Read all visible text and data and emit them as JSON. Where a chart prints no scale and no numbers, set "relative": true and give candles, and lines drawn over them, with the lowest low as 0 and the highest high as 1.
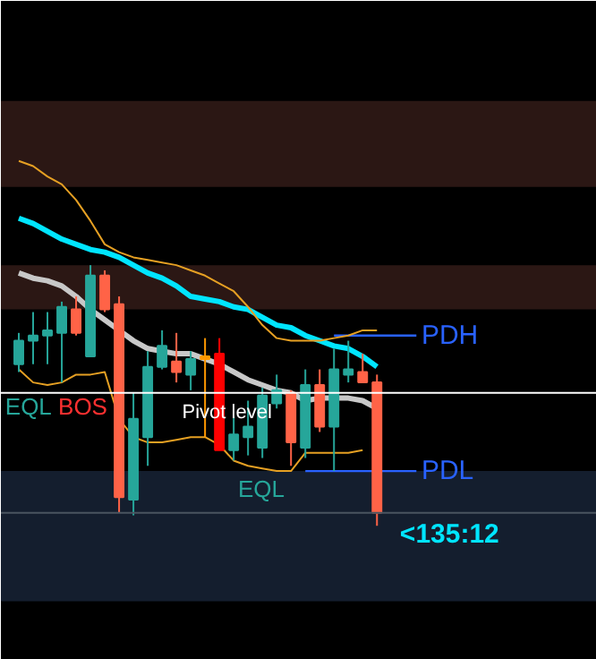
{
  "chart_data": {
    "type": "candlestick",
    "relative": true,
    "categories": [
      null,
      null,
      null,
      null,
      null,
      null,
      null,
      null,
      null,
      null,
      null,
      null,
      null,
      null,
      null,
      null,
      null,
      null,
      null,
      null,
      null,
      null,
      null,
      null,
      null,
      null
    ],
    "ohlc": [
      [
        0.62,
        0.74,
        0.59,
        0.71
      ],
      [
        0.71,
        0.82,
        0.62,
        0.73
      ],
      [
        0.73,
        0.82,
        0.62,
        0.75
      ],
      [
        0.74,
        0.86,
        0.55,
        0.84
      ],
      [
        0.83,
        0.88,
        0.73,
        0.74
      ],
      [
        0.65,
        1.0,
        0.65,
        0.96
      ],
      [
        0.96,
        0.98,
        0.82,
        0.83
      ],
      [
        0.85,
        0.88,
        0.05,
        0.11
      ],
      [
        0.1,
        0.51,
        0.04,
        0.41
      ],
      [
        0.34,
        0.67,
        0.23,
        0.61
      ],
      [
        0.61,
        0.75,
        0.6,
        0.69
      ],
      [
        0.63,
        0.74,
        0.55,
        0.59
      ],
      [
        0.58,
        0.67,
        0.52,
        0.64
      ],
      [
        0.65,
        0.72,
        0.34,
        0.64
      ],
      [
        0.66,
        0.72,
        0.29,
        0.29
      ],
      [
        0.29,
        0.42,
        0.25,
        0.35
      ],
      [
        0.34,
        0.48,
        0.27,
        0.38
      ],
      [
        0.3,
        0.53,
        0.26,
        0.5
      ],
      [
        0.47,
        0.58,
        0.45,
        0.52
      ],
      [
        0.51,
        0.52,
        0.23,
        0.32
      ],
      [
        0.3,
        0.6,
        0.26,
        0.54
      ],
      [
        0.54,
        0.6,
        0.36,
        0.38
      ],
      [
        0.38,
        0.68,
        0.21,
        0.6
      ],
      [
        0.58,
        0.71,
        0.55,
        0.6
      ],
      [
        0.59,
        0.66,
        0.55,
        0.55
      ],
      [
        0.55,
        0.58,
        0.0,
        0.05
      ]
    ],
    "colors": [
      "#26a69a",
      "#26a69a",
      "#26a69a",
      "#26a69a",
      "#ff6347",
      "#26a69a",
      "#ff6347",
      "#ff6347",
      "#26a69a",
      "#26a69a",
      "#26a69a",
      "#ff6347",
      "#26a69a",
      "#ff9800",
      "#ff0000",
      "#26a69a",
      "#26a69a",
      "#26a69a",
      "#26a69a",
      "#ff6347",
      "#26a69a",
      "#ff6347",
      "#26a69a",
      "#26a69a",
      "#ff6347",
      "#ff6347"
    ],
    "series": [
      {
        "type": "line",
        "color": "#00e5ff",
        "values": [
          1.18,
          1.16,
          1.13,
          1.1,
          1.08,
          1.06,
          1.05,
          1.03,
          1.0,
          0.97,
          0.95,
          0.92,
          0.88,
          0.87,
          0.86,
          0.84,
          0.83,
          0.8,
          0.77,
          0.76,
          0.73,
          0.71,
          0.69,
          0.68,
          0.65,
          0.61
        ]
      },
      {
        "type": "line",
        "color": "#c8c8c8",
        "values": [
          0.97,
          0.95,
          0.94,
          0.92,
          0.88,
          0.83,
          0.79,
          0.75,
          0.71,
          0.68,
          0.67,
          0.66,
          0.66,
          0.64,
          0.62,
          0.59,
          0.56,
          0.54,
          0.52,
          0.51,
          0.48,
          0.49,
          0.49,
          0.49,
          0.48,
          0.45
        ]
      },
      {
        "type": "line",
        "color": "#e6a023",
        "values": [
          1.4,
          1.38,
          1.34,
          1.31,
          1.25,
          1.17,
          1.08,
          1.05,
          1.03,
          1.02,
          1.01,
          1.0,
          0.98,
          0.96,
          0.93,
          0.9,
          0.84,
          0.77,
          0.72,
          0.71,
          0.71,
          0.71,
          0.72,
          0.73,
          0.75,
          0.75
        ]
      },
      {
        "type": "line",
        "color": "#e6a023",
        "values": [
          0.6,
          0.55,
          0.54,
          0.55,
          0.58,
          0.58,
          0.59,
          0.41,
          0.34,
          0.32,
          0.32,
          0.33,
          0.34,
          0.34,
          0.31,
          0.25,
          0.23,
          0.22,
          0.21,
          0.21,
          0.28,
          0.28,
          0.28,
          0.28,
          0.29,
          null
        ]
      }
    ],
    "bands": [
      {
        "axis": "y",
        "from": 1.3,
        "to": 1.63,
        "color": "#2b1714"
      },
      {
        "axis": "y",
        "from": 0.83,
        "to": 1.0,
        "color": "#2b1714"
      },
      {
        "axis": "y",
        "from": -0.29,
        "to": 0.21,
        "color": "#141e2e"
      }
    ],
    "ref_lines": [
      {
        "axis": "y",
        "value": 0.51,
        "label": "Pivot level",
        "color": "#ffffff"
      },
      {
        "axis": "y",
        "value": 0.05,
        "color": "#4a5560"
      },
      {
        "axis": "y",
        "value": 0.73,
        "label": "PDH",
        "color": "#2962ff"
      },
      {
        "axis": "y",
        "value": 0.21,
        "label": "PDL",
        "color": "#2962ff"
      }
    ],
    "annotations": [
      "EQL",
      "BOS",
      "EQL",
      "<135:12"
    ],
    "grid": false
  }
}
